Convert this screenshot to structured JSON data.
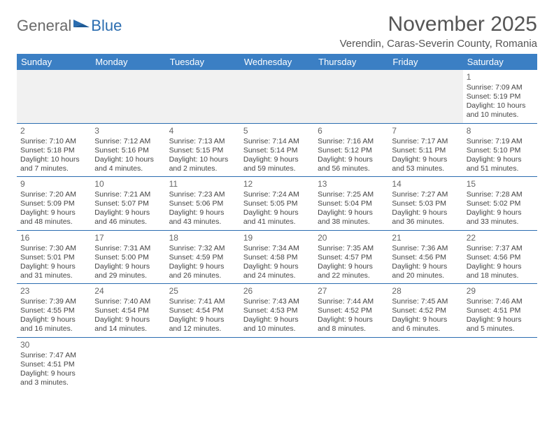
{
  "logo": {
    "part1": "General",
    "part2": "Blue"
  },
  "title": "November 2025",
  "subtitle": "Verendin, Caras-Severin County, Romania",
  "daysOfWeek": [
    "Sunday",
    "Monday",
    "Tuesday",
    "Wednesday",
    "Thursday",
    "Friday",
    "Saturday"
  ],
  "colors": {
    "headerBg": "#3b7fc4",
    "headerText": "#ffffff",
    "border": "#2b6db0",
    "text": "#444444",
    "mutedBg": "#f1f1f1"
  },
  "weeks": [
    [
      null,
      null,
      null,
      null,
      null,
      null,
      {
        "n": "1",
        "sr": "Sunrise: 7:09 AM",
        "ss": "Sunset: 5:19 PM",
        "dl": "Daylight: 10 hours and 10 minutes."
      }
    ],
    [
      {
        "n": "2",
        "sr": "Sunrise: 7:10 AM",
        "ss": "Sunset: 5:18 PM",
        "dl": "Daylight: 10 hours and 7 minutes."
      },
      {
        "n": "3",
        "sr": "Sunrise: 7:12 AM",
        "ss": "Sunset: 5:16 PM",
        "dl": "Daylight: 10 hours and 4 minutes."
      },
      {
        "n": "4",
        "sr": "Sunrise: 7:13 AM",
        "ss": "Sunset: 5:15 PM",
        "dl": "Daylight: 10 hours and 2 minutes."
      },
      {
        "n": "5",
        "sr": "Sunrise: 7:14 AM",
        "ss": "Sunset: 5:14 PM",
        "dl": "Daylight: 9 hours and 59 minutes."
      },
      {
        "n": "6",
        "sr": "Sunrise: 7:16 AM",
        "ss": "Sunset: 5:12 PM",
        "dl": "Daylight: 9 hours and 56 minutes."
      },
      {
        "n": "7",
        "sr": "Sunrise: 7:17 AM",
        "ss": "Sunset: 5:11 PM",
        "dl": "Daylight: 9 hours and 53 minutes."
      },
      {
        "n": "8",
        "sr": "Sunrise: 7:19 AM",
        "ss": "Sunset: 5:10 PM",
        "dl": "Daylight: 9 hours and 51 minutes."
      }
    ],
    [
      {
        "n": "9",
        "sr": "Sunrise: 7:20 AM",
        "ss": "Sunset: 5:09 PM",
        "dl": "Daylight: 9 hours and 48 minutes."
      },
      {
        "n": "10",
        "sr": "Sunrise: 7:21 AM",
        "ss": "Sunset: 5:07 PM",
        "dl": "Daylight: 9 hours and 46 minutes."
      },
      {
        "n": "11",
        "sr": "Sunrise: 7:23 AM",
        "ss": "Sunset: 5:06 PM",
        "dl": "Daylight: 9 hours and 43 minutes."
      },
      {
        "n": "12",
        "sr": "Sunrise: 7:24 AM",
        "ss": "Sunset: 5:05 PM",
        "dl": "Daylight: 9 hours and 41 minutes."
      },
      {
        "n": "13",
        "sr": "Sunrise: 7:25 AM",
        "ss": "Sunset: 5:04 PM",
        "dl": "Daylight: 9 hours and 38 minutes."
      },
      {
        "n": "14",
        "sr": "Sunrise: 7:27 AM",
        "ss": "Sunset: 5:03 PM",
        "dl": "Daylight: 9 hours and 36 minutes."
      },
      {
        "n": "15",
        "sr": "Sunrise: 7:28 AM",
        "ss": "Sunset: 5:02 PM",
        "dl": "Daylight: 9 hours and 33 minutes."
      }
    ],
    [
      {
        "n": "16",
        "sr": "Sunrise: 7:30 AM",
        "ss": "Sunset: 5:01 PM",
        "dl": "Daylight: 9 hours and 31 minutes."
      },
      {
        "n": "17",
        "sr": "Sunrise: 7:31 AM",
        "ss": "Sunset: 5:00 PM",
        "dl": "Daylight: 9 hours and 29 minutes."
      },
      {
        "n": "18",
        "sr": "Sunrise: 7:32 AM",
        "ss": "Sunset: 4:59 PM",
        "dl": "Daylight: 9 hours and 26 minutes."
      },
      {
        "n": "19",
        "sr": "Sunrise: 7:34 AM",
        "ss": "Sunset: 4:58 PM",
        "dl": "Daylight: 9 hours and 24 minutes."
      },
      {
        "n": "20",
        "sr": "Sunrise: 7:35 AM",
        "ss": "Sunset: 4:57 PM",
        "dl": "Daylight: 9 hours and 22 minutes."
      },
      {
        "n": "21",
        "sr": "Sunrise: 7:36 AM",
        "ss": "Sunset: 4:56 PM",
        "dl": "Daylight: 9 hours and 20 minutes."
      },
      {
        "n": "22",
        "sr": "Sunrise: 7:37 AM",
        "ss": "Sunset: 4:56 PM",
        "dl": "Daylight: 9 hours and 18 minutes."
      }
    ],
    [
      {
        "n": "23",
        "sr": "Sunrise: 7:39 AM",
        "ss": "Sunset: 4:55 PM",
        "dl": "Daylight: 9 hours and 16 minutes."
      },
      {
        "n": "24",
        "sr": "Sunrise: 7:40 AM",
        "ss": "Sunset: 4:54 PM",
        "dl": "Daylight: 9 hours and 14 minutes."
      },
      {
        "n": "25",
        "sr": "Sunrise: 7:41 AM",
        "ss": "Sunset: 4:54 PM",
        "dl": "Daylight: 9 hours and 12 minutes."
      },
      {
        "n": "26",
        "sr": "Sunrise: 7:43 AM",
        "ss": "Sunset: 4:53 PM",
        "dl": "Daylight: 9 hours and 10 minutes."
      },
      {
        "n": "27",
        "sr": "Sunrise: 7:44 AM",
        "ss": "Sunset: 4:52 PM",
        "dl": "Daylight: 9 hours and 8 minutes."
      },
      {
        "n": "28",
        "sr": "Sunrise: 7:45 AM",
        "ss": "Sunset: 4:52 PM",
        "dl": "Daylight: 9 hours and 6 minutes."
      },
      {
        "n": "29",
        "sr": "Sunrise: 7:46 AM",
        "ss": "Sunset: 4:51 PM",
        "dl": "Daylight: 9 hours and 5 minutes."
      }
    ],
    [
      {
        "n": "30",
        "sr": "Sunrise: 7:47 AM",
        "ss": "Sunset: 4:51 PM",
        "dl": "Daylight: 9 hours and 3 minutes."
      },
      null,
      null,
      null,
      null,
      null,
      null
    ]
  ]
}
